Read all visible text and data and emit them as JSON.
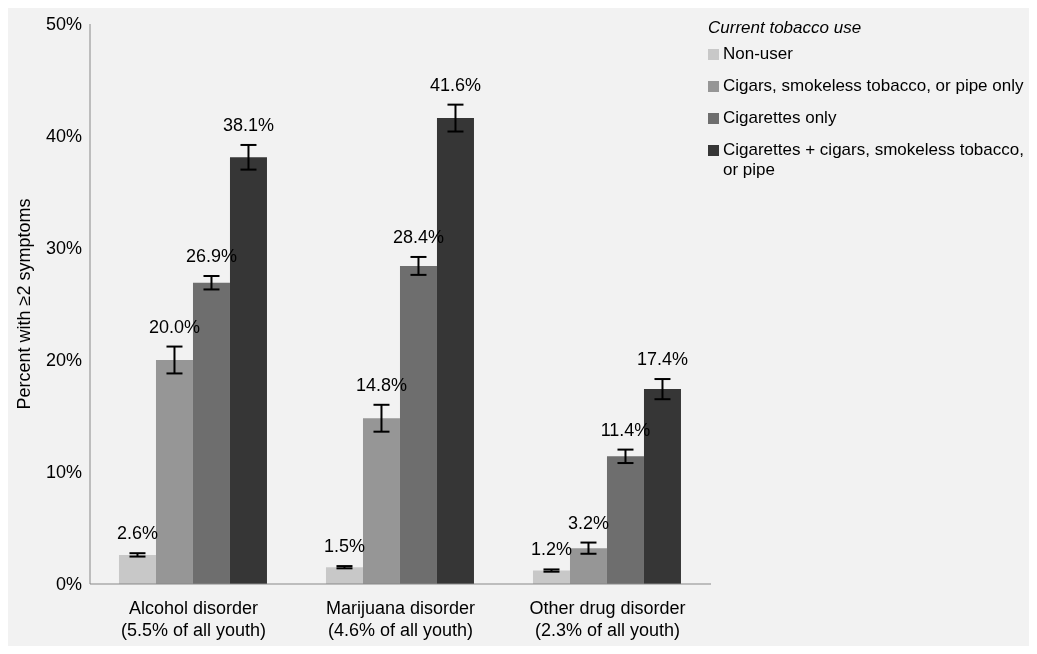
{
  "chart_data": {
    "type": "bar",
    "ylabel": "Percent with ≥2 symptoms",
    "legend_title": "Current tobacco use",
    "legend": "top right",
    "grid": false,
    "categories": [
      "Alcohol disorder\n(5.5% of all youth)",
      "Marijuana disorder\n(4.6% of all youth)",
      "Other drug disorder\n(2.3% of all youth)"
    ],
    "ylim": [
      0,
      50
    ],
    "yticks": [
      {
        "value": 0,
        "label": "0%"
      },
      {
        "value": 10,
        "label": "10%"
      },
      {
        "value": 20,
        "label": "20%"
      },
      {
        "value": 30,
        "label": "30%"
      },
      {
        "value": 40,
        "label": "40%"
      },
      {
        "value": 50,
        "label": "50%"
      }
    ],
    "series": [
      {
        "name": "Non-user",
        "color": "#c8c8c8",
        "values": [
          2.6,
          1.5,
          1.2
        ],
        "errors": [
          0.15,
          0.1,
          0.1
        ],
        "value_labels": [
          "2.6%",
          "1.5%",
          "1.2%"
        ]
      },
      {
        "name": "Cigars, smokeless tobacco, or pipe only",
        "color": "#969696",
        "values": [
          20.0,
          14.8,
          3.2
        ],
        "errors": [
          1.2,
          1.2,
          0.5
        ],
        "value_labels": [
          "20.0%",
          "14.8%",
          "3.2%"
        ]
      },
      {
        "name": "Cigarettes only",
        "color": "#6e6e6e",
        "values": [
          26.9,
          28.4,
          11.4
        ],
        "errors": [
          0.6,
          0.8,
          0.6
        ],
        "value_labels": [
          "26.9%",
          "28.4%",
          "11.4%"
        ]
      },
      {
        "name": "Cigarettes + cigars, smokeless tobacco, or pipe",
        "color": "#363636",
        "values": [
          38.1,
          41.6,
          17.4
        ],
        "errors": [
          1.1,
          1.2,
          0.9
        ],
        "value_labels": [
          "38.1%",
          "41.6%",
          "17.4%"
        ]
      }
    ]
  }
}
